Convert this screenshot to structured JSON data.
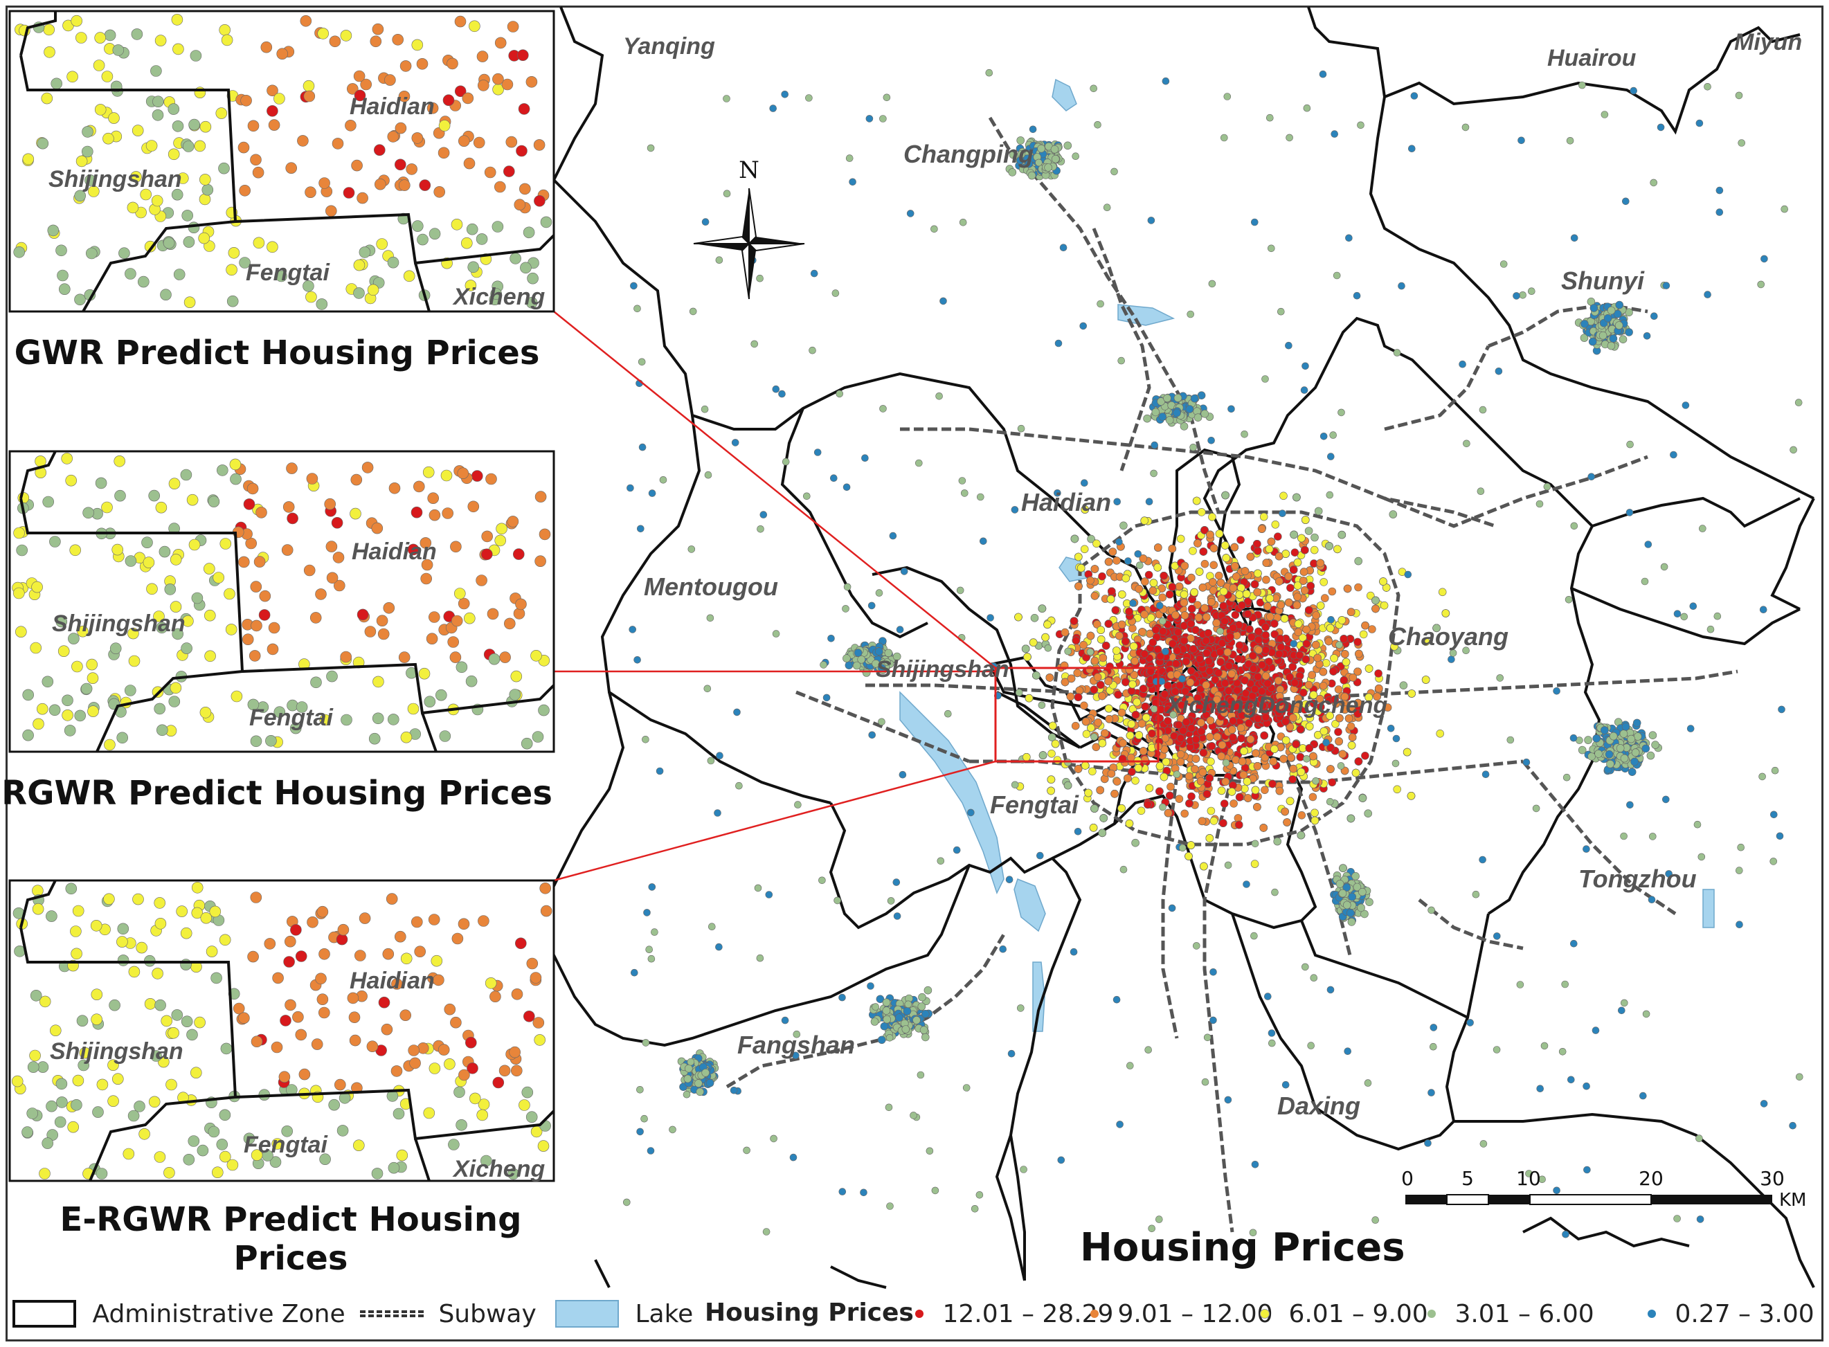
{
  "main_map": {
    "title": "Housing Prices",
    "districts": [
      {
        "id": "yanqing",
        "label": "Yanqing"
      },
      {
        "id": "huairou",
        "label": "Huairou"
      },
      {
        "id": "miyun",
        "label": "Miyun"
      },
      {
        "id": "changping",
        "label": "Changping"
      },
      {
        "id": "shunyi",
        "label": "Shunyi"
      },
      {
        "id": "haidian",
        "label": "Haidian"
      },
      {
        "id": "mentougou",
        "label": "Mentougou"
      },
      {
        "id": "chaoyang",
        "label": "Chaoyang"
      },
      {
        "id": "shijingshan",
        "label": "Shijingshan"
      },
      {
        "id": "dongcheng",
        "label": "XichengDongcheng"
      },
      {
        "id": "fengtai",
        "label": "Fengtai"
      },
      {
        "id": "tongzhou",
        "label": "Tongzhou"
      },
      {
        "id": "fangshan",
        "label": "Fangshan"
      },
      {
        "id": "daxing",
        "label": "Daxing"
      }
    ],
    "north_arrow": {
      "label": "N",
      "icon": "north-arrow-icon"
    },
    "scale_bar": {
      "ticks": [
        "0",
        "5",
        "10",
        "20",
        "30"
      ],
      "unit": "KM"
    }
  },
  "insets": [
    {
      "id": "gwr",
      "title": "GWR Predict Housing Prices",
      "labels": [
        "Haidian",
        "Shijingshan",
        "Fengtai",
        "Xicheng"
      ]
    },
    {
      "id": "rgwr",
      "title": "RGWR Predict Housing Prices",
      "labels": [
        "Haidian",
        "Shijingshan",
        "Fengtai"
      ]
    },
    {
      "id": "ergwr",
      "title": "E-RGWR Predict Housing Prices",
      "labels": [
        "Haidian",
        "Shijingshan",
        "Fengtai",
        "Xicheng"
      ]
    }
  ],
  "legend": {
    "admin_zone": "Administrative Zone",
    "subway": "Subway",
    "lake": "Lake",
    "prices_title": "Housing Prices",
    "classes": [
      {
        "label": "12.01 – 28.29",
        "color": "#d7191c"
      },
      {
        "label": "9.01 – 12.00",
        "color": "#e8853a"
      },
      {
        "label": "6.01 – 9.00",
        "color": "#f2f03c"
      },
      {
        "label": "3.01 – 6.00",
        "color": "#9cc08f"
      },
      {
        "label": "0.27 – 3.00",
        "color": "#2b83ba"
      }
    ]
  },
  "colors": {
    "highlight_box": "#e02020",
    "lake": "#a6d4ee",
    "border": "#111111"
  }
}
